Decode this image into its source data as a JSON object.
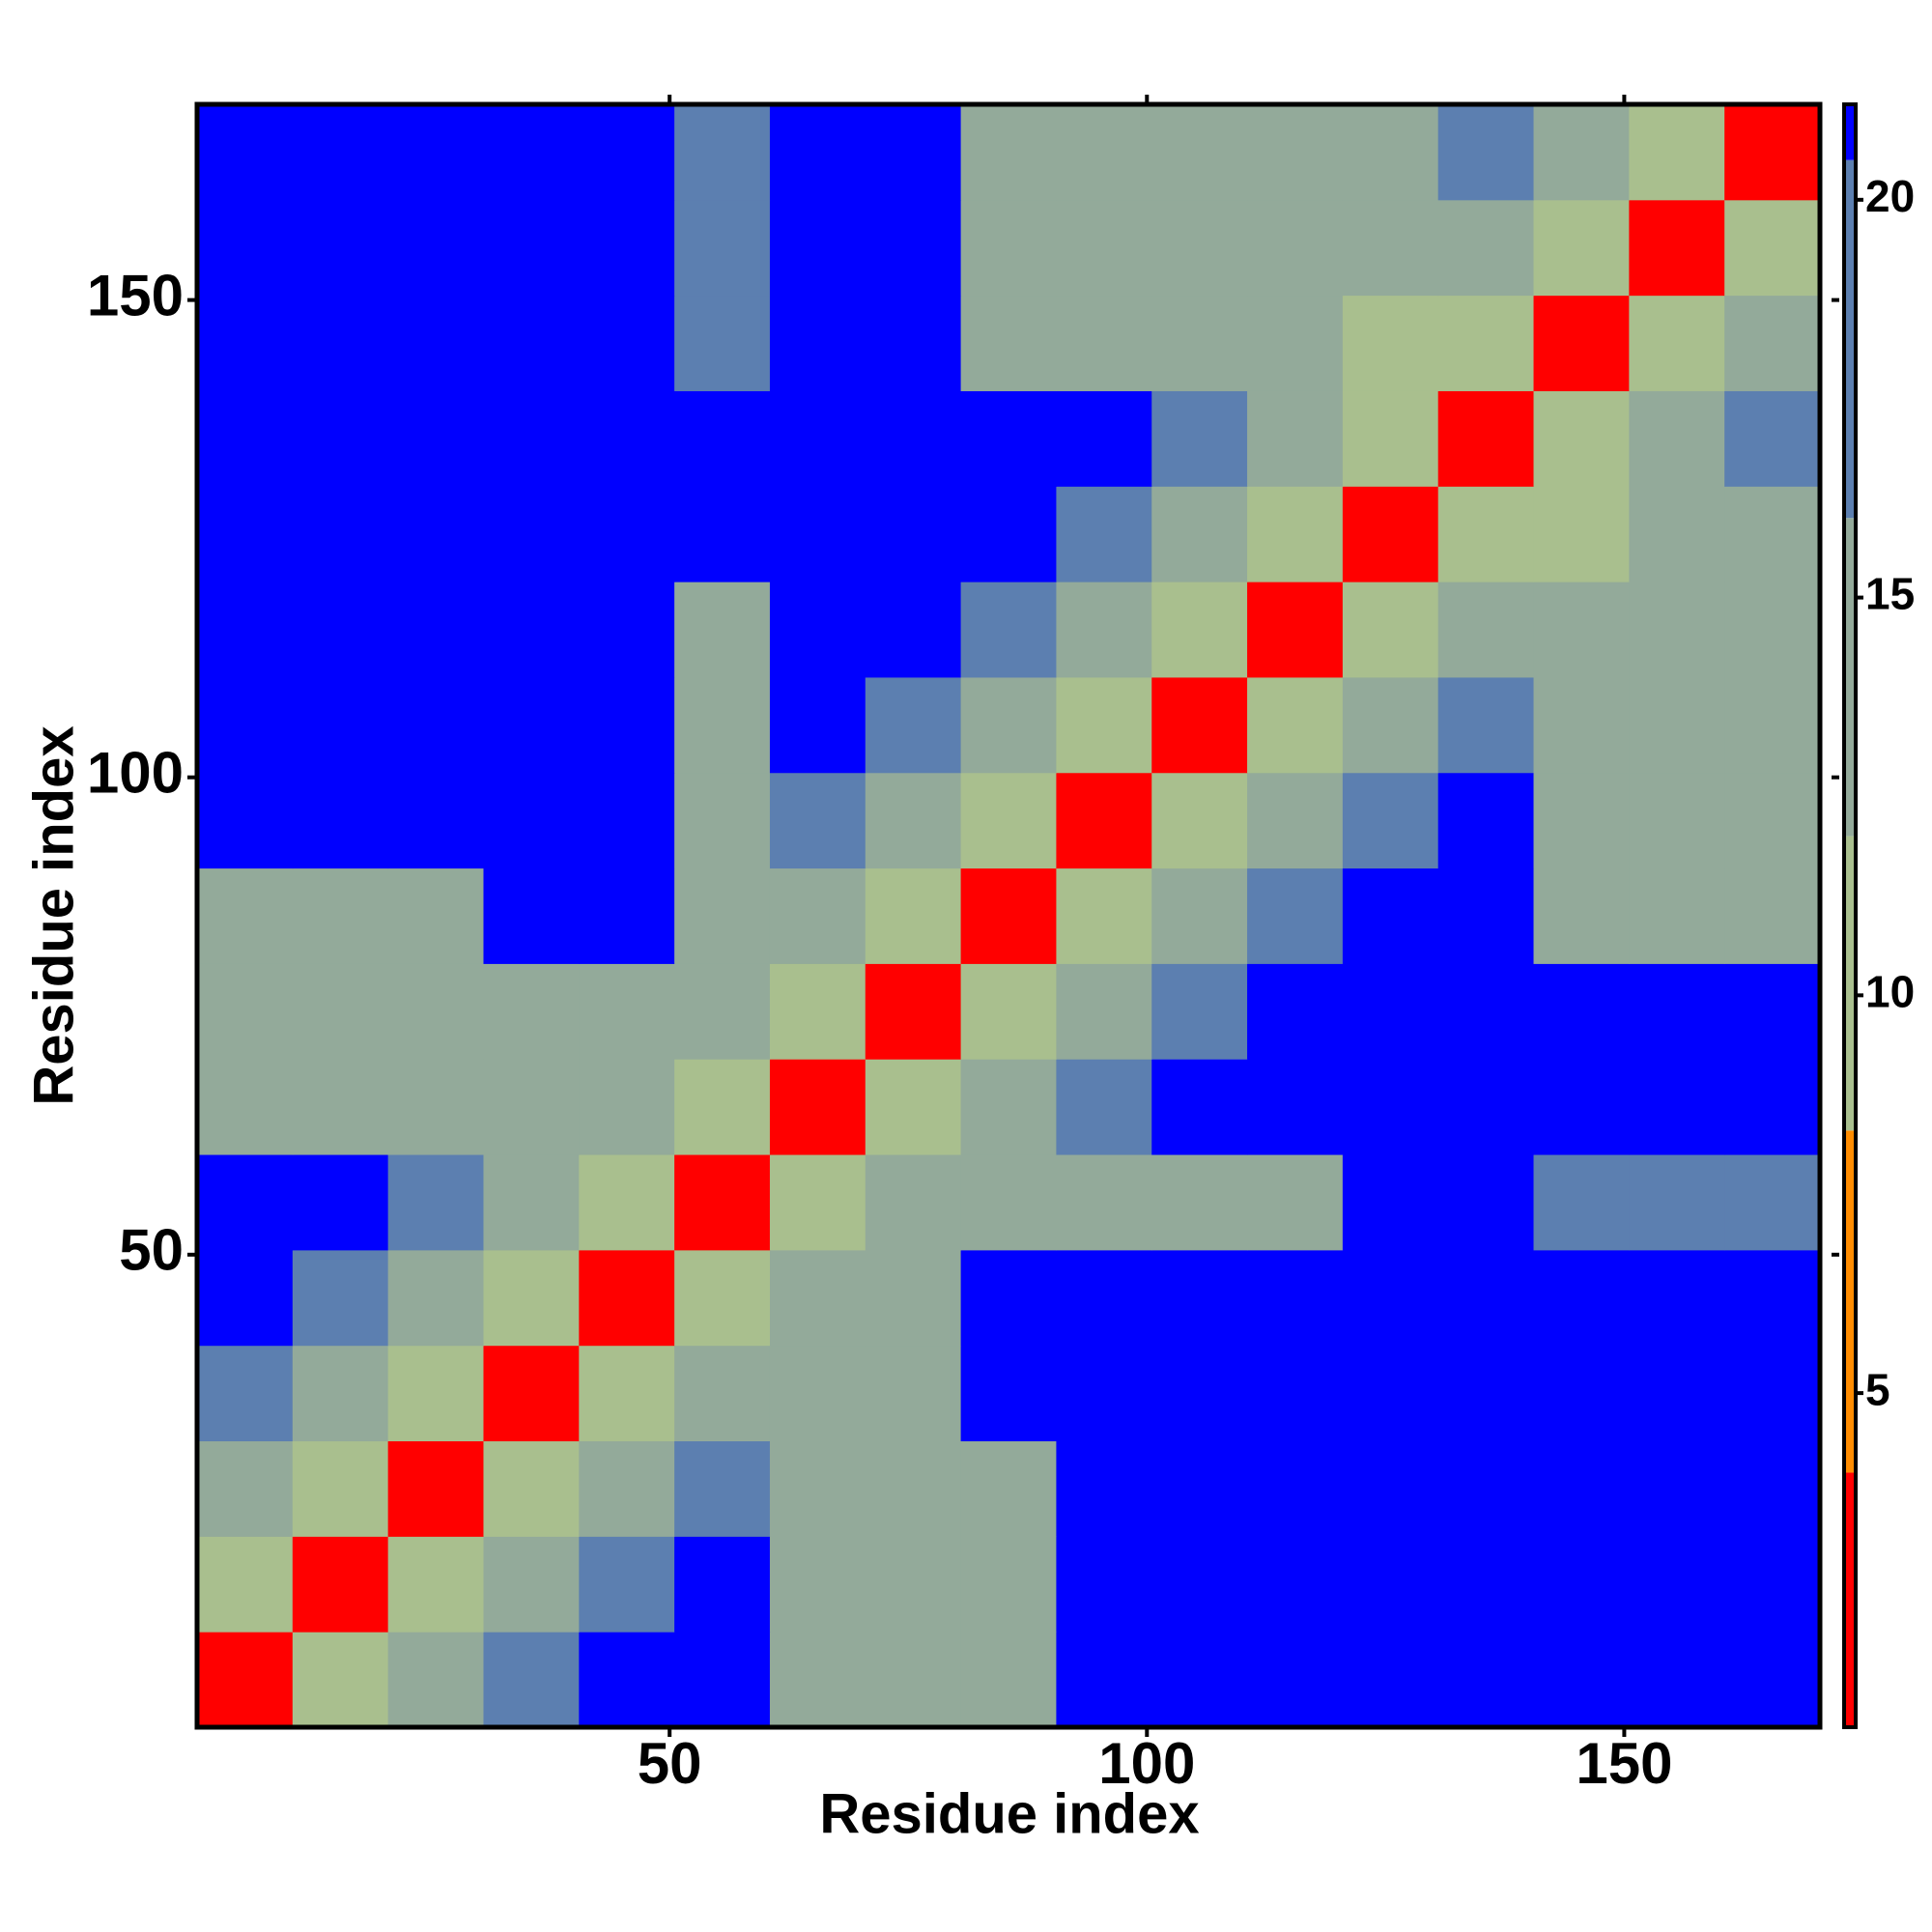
{
  "chart_data": {
    "type": "heatmap",
    "x_label": "Residue index",
    "y_label": "Residue index",
    "x_bins": [
      0.5,
      10.5,
      20.5,
      30.5,
      40.5,
      50.5,
      60.5,
      70.5,
      80.5,
      90.5,
      100.5,
      110.5,
      120.5,
      130.5,
      140.5,
      150.5,
      160.5,
      170.5
    ],
    "y_bins": [
      0.5,
      10.5,
      20.5,
      30.5,
      40.5,
      50.5,
      60.5,
      70.5,
      80.5,
      90.5,
      100.5,
      110.5,
      120.5,
      130.5,
      140.5,
      150.5,
      160.5,
      170.5
    ],
    "values": [
      [
        3,
        9,
        14,
        18,
        21,
        21,
        14,
        14,
        14,
        21,
        21,
        21,
        21,
        21,
        21,
        21,
        21
      ],
      [
        9,
        3,
        9,
        14,
        18,
        21,
        14,
        14,
        14,
        21,
        21,
        21,
        21,
        21,
        21,
        21,
        21
      ],
      [
        14,
        9,
        3,
        9,
        14,
        18,
        14,
        14,
        14,
        21,
        21,
        21,
        21,
        21,
        21,
        21,
        21
      ],
      [
        18,
        14,
        9,
        3,
        9,
        13,
        13,
        15,
        21,
        21,
        21,
        21,
        21,
        21,
        21,
        21,
        21
      ],
      [
        21,
        18,
        14,
        9,
        3,
        9,
        14,
        13,
        21,
        21,
        21,
        21,
        21,
        21,
        21,
        21,
        21
      ],
      [
        21,
        21,
        18,
        13,
        9,
        3,
        9,
        14,
        14,
        15,
        16,
        15,
        21,
        21,
        19,
        19,
        19
      ],
      [
        14,
        14,
        14,
        13,
        14,
        9,
        3,
        9,
        14,
        18,
        21,
        21,
        21,
        21,
        21,
        21,
        21
      ],
      [
        14,
        14,
        14,
        15,
        13,
        14,
        9,
        3,
        9,
        14,
        18,
        21,
        21,
        21,
        21,
        21,
        21
      ],
      [
        14,
        14,
        14,
        21,
        21,
        14,
        14,
        9,
        3,
        9,
        14,
        18,
        21,
        21,
        16,
        16,
        16
      ],
      [
        21,
        21,
        21,
        21,
        21,
        15,
        18,
        14,
        9,
        3,
        9,
        14,
        18,
        21,
        15,
        15,
        16
      ],
      [
        21,
        21,
        21,
        21,
        21,
        16,
        21,
        18,
        14,
        9,
        3,
        9,
        14,
        18,
        14,
        14,
        15
      ],
      [
        21,
        21,
        21,
        21,
        21,
        15,
        21,
        21,
        18,
        14,
        9,
        3,
        9,
        14,
        13,
        14,
        14
      ],
      [
        21,
        21,
        21,
        21,
        21,
        21,
        21,
        21,
        21,
        18,
        14,
        9,
        3,
        9,
        12,
        13,
        14
      ],
      [
        21,
        21,
        21,
        21,
        21,
        21,
        21,
        21,
        21,
        21,
        18,
        14,
        9,
        3,
        9,
        14,
        18
      ],
      [
        21,
        21,
        21,
        21,
        21,
        19,
        21,
        21,
        16,
        15,
        14,
        13,
        12,
        9,
        3,
        9,
        14
      ],
      [
        21,
        21,
        21,
        21,
        21,
        19,
        21,
        21,
        16,
        15,
        14,
        14,
        13,
        14,
        9,
        3,
        9
      ],
      [
        21,
        21,
        21,
        21,
        21,
        19,
        21,
        21,
        16,
        16,
        15,
        14,
        14,
        18,
        14,
        9,
        3
      ]
    ],
    "xlim": [
      0.5,
      170.5
    ],
    "ylim": [
      0.5,
      170.5
    ],
    "xticks": [
      50,
      100,
      150
    ],
    "yticks": [
      50,
      100,
      150
    ],
    "clim": [
      0.8,
      21.2
    ],
    "cticks": [
      5,
      10,
      15,
      20
    ],
    "color_levels": [
      {
        "max": 4,
        "color": "#ff0000"
      },
      {
        "max": 8.3,
        "color": "#ff8c00"
      },
      {
        "max": 12,
        "color": "#a9bf8e"
      },
      {
        "max": 16,
        "color": "#93aa9a"
      },
      {
        "max": 20.5,
        "color": "#5c7fb0"
      },
      {
        "max": 21.2,
        "color": "#0000ff"
      }
    ]
  }
}
